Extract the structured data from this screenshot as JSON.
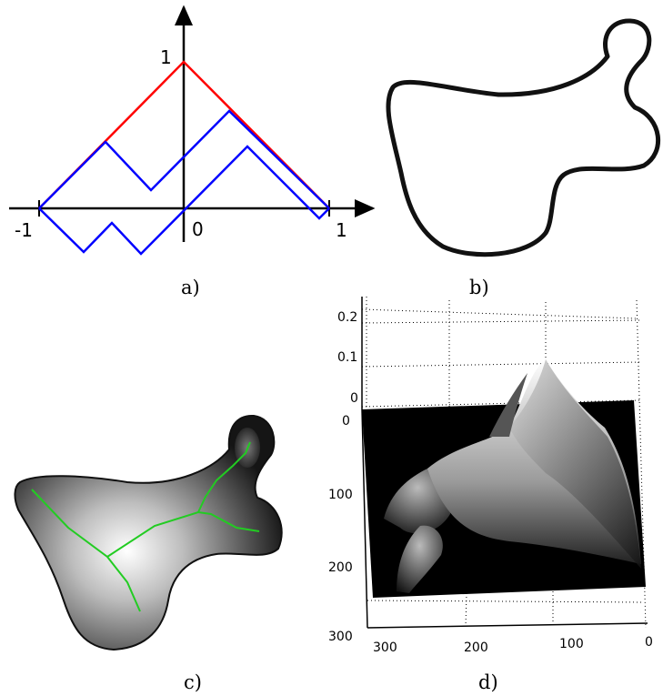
{
  "panels": [
    {
      "id": "a",
      "caption": "a)",
      "tick_labels": {
        "x_left": "-1",
        "x_origin": "0",
        "x_right": "1",
        "y_top": "1"
      },
      "colors": {
        "axes": "#000000",
        "red_curve": "#ff0000",
        "blue_curves": "#0000ff"
      }
    },
    {
      "id": "b",
      "caption": "b)",
      "colors": {
        "outline": "#111111"
      }
    },
    {
      "id": "c",
      "caption": "c)",
      "colors": {
        "skeleton": "#22cc22",
        "shape_center": "#ffffff",
        "shape_edge": "#1a1a1a"
      }
    },
    {
      "id": "d",
      "caption": "d)",
      "z_ticks": [
        "0.2",
        "0.1",
        "0"
      ],
      "y_ticks": [
        "0",
        "100",
        "200",
        "300"
      ],
      "x_ticks": [
        "300",
        "200",
        "100",
        "0"
      ],
      "colors": {
        "surface_base": "#000000",
        "peak": "#ffffff",
        "grid": "#000000"
      }
    }
  ]
}
